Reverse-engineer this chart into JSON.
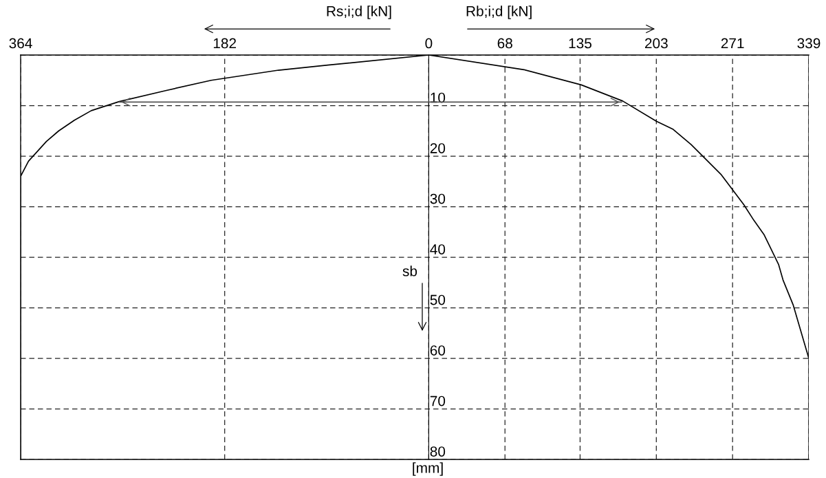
{
  "chart_data": {
    "type": "line",
    "annotations": [
      "Rs;i;d [kN]",
      "Rb;i;d [kN]",
      "sb",
      "[mm]"
    ],
    "series": [
      {
        "color": "#000000",
        "x": [
          -364,
          -364,
          -357,
          -341,
          -330,
          -316,
          -301,
          -276,
          -234,
          -194,
          -134,
          -90,
          0,
          85,
          136,
          173,
          203,
          218,
          234,
          261,
          281,
          290,
          299,
          312,
          316,
          325,
          339
        ],
        "values": [
          80,
          24,
          21,
          17.1,
          15,
          12.9,
          11,
          9.2,
          7,
          5,
          3,
          2,
          0,
          2.9,
          5.9,
          9.1,
          13.1,
          14.7,
          17.7,
          23.7,
          29.6,
          32.7,
          35.5,
          41.4,
          44.5,
          49.4,
          60
        ]
      },
      {
        "color": "#555555",
        "x": [
          -276,
          172
        ],
        "values": [
          9.3,
          9.3
        ]
      }
    ],
    "xlim": [
      -364,
      339
    ],
    "xticks": [
      {
        "value": -364,
        "label": "364"
      },
      {
        "value": -182,
        "label": "182"
      },
      0,
      68,
      135,
      203,
      271,
      339
    ],
    "ylim": [
      80,
      0
    ],
    "yticks": [
      {
        "value": 0,
        "label": null
      },
      10,
      20,
      30,
      40,
      50,
      60,
      70,
      80
    ],
    "grid": true,
    "legend": false,
    "marker": "none",
    "line_style": "solid"
  }
}
